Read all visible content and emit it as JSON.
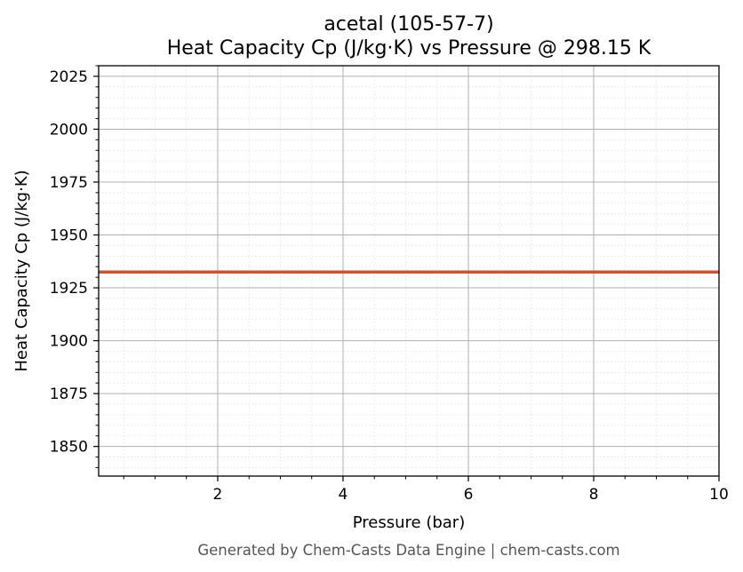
{
  "chart_data": {
    "type": "line",
    "title": "acetal (105-57-7)",
    "subtitle": "Heat Capacity Cp (J/kg·K) vs Pressure @ 298.15 K",
    "xlabel": "Pressure (bar)",
    "ylabel": "Heat Capacity Cp (J/kg·K)",
    "xlim": [
      0.1,
      10
    ],
    "ylim": [
      1836,
      2030
    ],
    "xticks": [
      2,
      4,
      6,
      8,
      10
    ],
    "xtick_labels": [
      "2",
      "4",
      "6",
      "8",
      "10"
    ],
    "yticks": [
      1850,
      1875,
      1900,
      1925,
      1950,
      1975,
      2000,
      2025
    ],
    "ytick_labels": [
      "1850",
      "1875",
      "1900",
      "1925",
      "1950",
      "1975",
      "2000",
      "2025"
    ],
    "grid": true,
    "minor_grid": true,
    "series": [
      {
        "x": [
          0.1,
          10
        ],
        "values": [
          1932.5,
          1932.5
        ],
        "color": "#c8552b"
      }
    ]
  },
  "footer": "Generated by Chem-Casts Data Engine | chem-casts.com"
}
